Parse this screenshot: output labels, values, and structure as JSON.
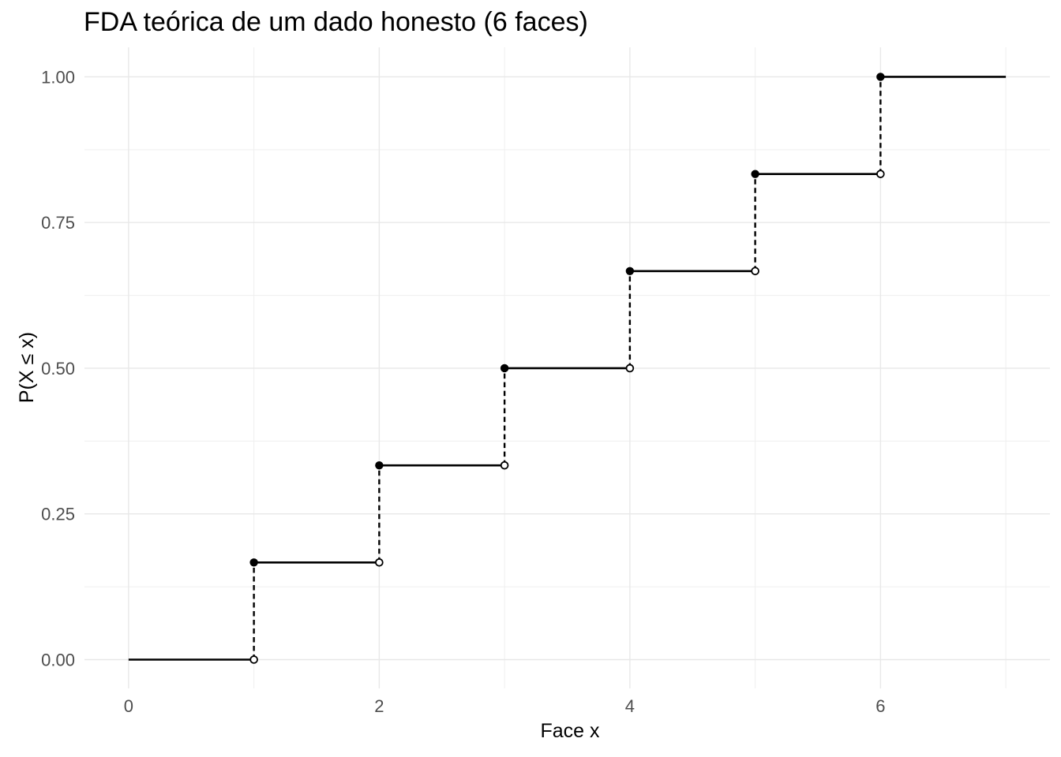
{
  "chart_data": {
    "type": "line",
    "subtype": "ecdf-step",
    "title": "FDA teórica de um dado honesto (6 faces)",
    "xlabel": "Face x",
    "ylabel": "P(X ≤ x)",
    "faces": [
      1,
      2,
      3,
      4,
      5,
      6
    ],
    "cdf": [
      0.1667,
      0.3333,
      0.5,
      0.6667,
      0.8333,
      1.0
    ],
    "x_start": 0,
    "x_end": 7,
    "y_start": 0,
    "x_ticks": [
      0,
      2,
      4,
      6
    ],
    "x_tick_labels": [
      "0",
      "2",
      "4",
      "6"
    ],
    "x_minor_gridlines": [
      1,
      3,
      5,
      7
    ],
    "y_ticks": [
      0,
      0.25,
      0.5,
      0.75,
      1.0
    ],
    "y_tick_labels": [
      "0.00",
      "0.25",
      "0.50",
      "0.75",
      "1.00"
    ],
    "y_minor_gridlines": [
      0.125,
      0.375,
      0.625,
      0.875
    ],
    "xlim": [
      -0.352,
      7.352
    ],
    "ylim": [
      -0.0494,
      1.0507
    ],
    "grid": "on",
    "legend": "none",
    "colors": {
      "line": "#000000",
      "grid_major": "#E8E8E8",
      "grid_minor": "#EFEFEF",
      "tick_text": "#4D4D4D",
      "title_text": "#000000",
      "background": "#FFFFFF"
    }
  }
}
